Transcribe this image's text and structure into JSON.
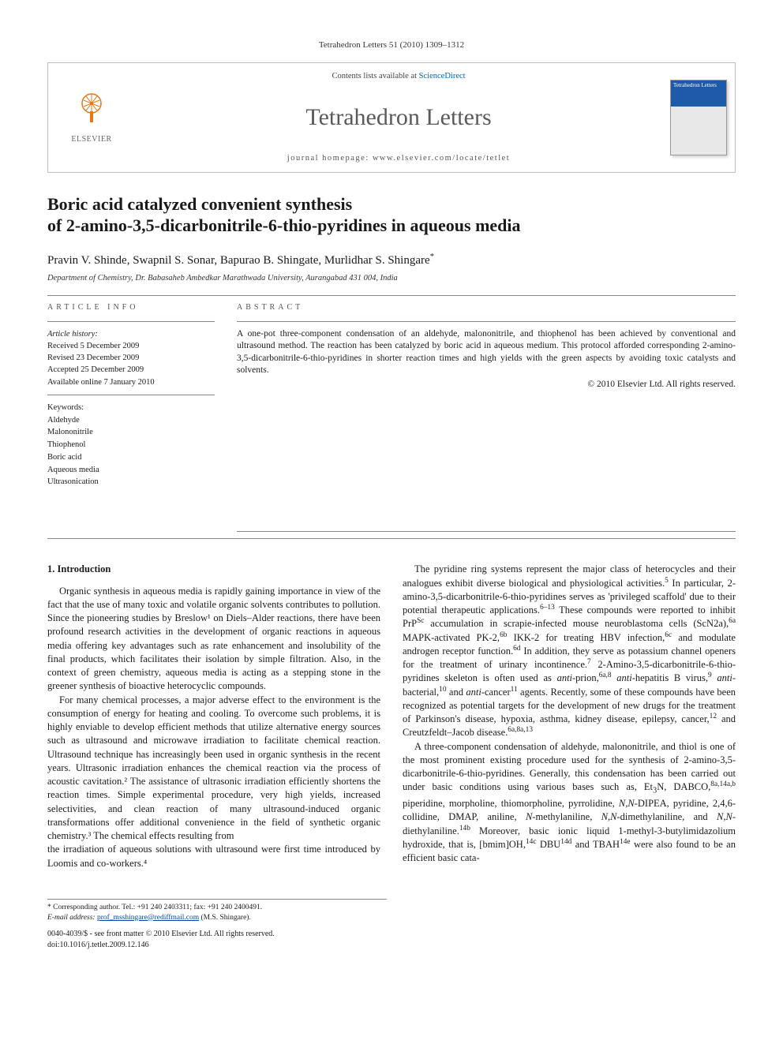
{
  "citation": "Tetrahedron Letters 51 (2010) 1309–1312",
  "header": {
    "publisher_name": "ELSEVIER",
    "contents_prefix": "Contents lists available at ",
    "contents_link_text": "ScienceDirect",
    "journal_name": "Tetrahedron Letters",
    "homepage_prefix": "journal homepage: ",
    "homepage_url": "www.elsevier.com/locate/tetlet",
    "cover_label": "Tetrahedron Letters"
  },
  "article": {
    "title_line1": "Boric acid catalyzed convenient synthesis",
    "title_line2": "of 2-amino-3,5-dicarbonitrile-6-thio-pyridines in aqueous media",
    "authors": "Pravin V. Shinde, Swapnil S. Sonar, Bapurao B. Shingate, Murlidhar S. Shingare",
    "corr_marker": "*",
    "affiliation": "Department of Chemistry, Dr. Babasaheb Ambedkar Marathwada University, Aurangabad 431 004, India"
  },
  "info": {
    "label": "ARTICLE INFO",
    "history_label": "Article history:",
    "received": "Received 5 December 2009",
    "revised": "Revised 23 December 2009",
    "accepted": "Accepted 25 December 2009",
    "online": "Available online 7 January 2010",
    "keywords_label": "Keywords:",
    "keywords": [
      "Aldehyde",
      "Malononitrile",
      "Thiophenol",
      "Boric acid",
      "Aqueous media",
      "Ultrasonication"
    ]
  },
  "abstract": {
    "label": "ABSTRACT",
    "text": "A one-pot three-component condensation of an aldehyde, malononitrile, and thiophenol has been achieved by conventional and ultrasound method. The reaction has been catalyzed by boric acid in aqueous medium. This protocol afforded corresponding 2-amino-3,5-dicarbonitrile-6-thio-pyridines in shorter reaction times and high yields with the green aspects by avoiding toxic catalysts and solvents.",
    "copyright": "© 2010 Elsevier Ltd. All rights reserved."
  },
  "body": {
    "heading": "1. Introduction",
    "p1": "Organic synthesis in aqueous media is rapidly gaining importance in view of the fact that the use of many toxic and volatile organic solvents contributes to pollution. Since the pioneering studies by Breslow¹ on Diels–Alder reactions, there have been profound research activities in the development of organic reactions in aqueous media offering key advantages such as rate enhancement and insolubility of the final products, which facilitates their isolation by simple filtration. Also, in the context of green chemistry, aqueous media is acting as a stepping stone in the greener synthesis of bioactive heterocyclic compounds.",
    "p2": "For many chemical processes, a major adverse effect to the environment is the consumption of energy for heating and cooling. To overcome such problems, it is highly enviable to develop efficient methods that utilize alternative energy sources such as ultrasound and microwave irradiation to facilitate chemical reaction. Ultrasound technique has increasingly been used in organic synthesis in the recent years. Ultrasonic irradiation enhances the chemical reaction via the process of acoustic cavitation.² The assistance of ultrasonic irradiation efficiently shortens the reaction times. Simple experimental procedure, very high yields, increased selectivities, and clean reaction of many ultrasound-induced organic transformations offer additional convenience in the field of synthetic organic chemistry.³ The chemical effects resulting from",
    "p3": "the irradiation of aqueous solutions with ultrasound were first time introduced by Loomis and co-workers.⁴",
    "p4_html": "The pyridine ring systems represent the major class of heterocycles and their analogues exhibit diverse biological and physiological activities.<sup>5</sup> In particular, 2-amino-3,5-dicarbonitrile-6-thio-pyridines serves as 'privileged scaffold' due to their potential therapeutic applications.<sup>6–13</sup> These compounds were reported to inhibit PrP<sup>Sc</sup> accumulation in scrapie-infected mouse neuroblastoma cells (ScN2a),<sup>6a</sup> MAPK-activated PK-2,<sup>6b</sup> IKK-2 for treating HBV infection,<sup>6c</sup> and modulate androgen receptor function.<sup>6d</sup> In addition, they serve as potassium channel openers for the treatment of urinary incontinence.<sup>7</sup> 2-Amino-3,5-dicarbonitrile-6-thio-pyridines skeleton is often used as <span class=\"ital\">anti</span>-prion,<sup>6a,8</sup> <span class=\"ital\">anti</span>-hepatitis B virus,<sup>9</sup> <span class=\"ital\">anti</span>-bacterial,<sup>10</sup> and <span class=\"ital\">anti</span>-cancer<sup>11</sup> agents. Recently, some of these compounds have been recognized as potential targets for the development of new drugs for the treatment of Parkinson's disease, hypoxia, asthma, kidney disease, epilepsy, cancer,<sup>12</sup> and Creutzfeldt–Jacob disease.<sup>6a,8a,13</sup>",
    "p5_html": "A three-component condensation of aldehyde, malononitrile, and thiol is one of the most prominent existing procedure used for the synthesis of 2-amino-3,5-dicarbonitrile-6-thio-pyridines. Generally, this condensation has been carried out under basic conditions using various bases such as, Et<sub>3</sub>N, DABCO,<sup>8a,14a,b</sup> piperidine, morpholine, thiomorpholine, pyrrolidine, <span class=\"ital\">N,N</span>-DIPEA, pyridine, 2,4,6-collidine, DMAP, aniline, <span class=\"ital\">N</span>-methylaniline, <span class=\"ital\">N,N</span>-dimethylaniline, and <span class=\"ital\">N,N</span>-diethylaniline.<sup>14b</sup> Moreover, basic ionic liquid 1-methyl-3-butylimidazolium hydroxide, that is, [bmim]OH,<sup>14c</sup> DBU<sup>14d</sup> and TBAH<sup>14e</sup> were also found to be an efficient basic cata-"
  },
  "footnote": {
    "corr_label": "* Corresponding author. Tel.: +91 240 2403311; fax: +91 240 2400491.",
    "email_label": "E-mail address:",
    "email": "prof_msshingare@rediffmail.com",
    "email_attrib": "(M.S. Shingare).",
    "issn_line": "0040-4039/$ - see front matter © 2010 Elsevier Ltd. All rights reserved.",
    "doi_line": "doi:10.1016/j.tetlet.2009.12.146"
  },
  "colors": {
    "elsevier_orange": "#e67817",
    "link_blue": "#0066b3",
    "rule_gray": "#888888",
    "text": "#1a1a1a",
    "email_blue": "#0645AD"
  }
}
